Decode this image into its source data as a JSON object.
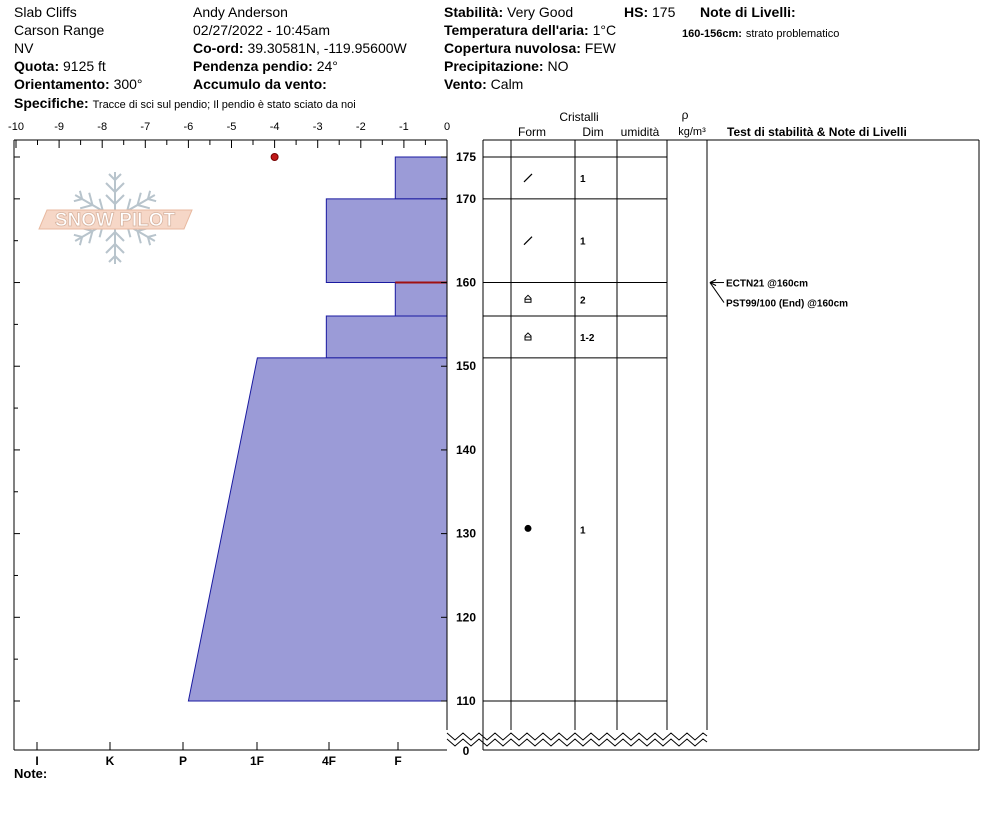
{
  "header": {
    "location": "Slab Cliffs",
    "range": "Carson Range",
    "state": "NV",
    "elevation_label": "Quota:",
    "elevation": "9125 ft",
    "aspect_label": "Orientamento:",
    "aspect": "300°",
    "specifics_label": "Specifiche:",
    "specifics": "Tracce di sci sul pendio;  Il pendio è stato sciato da noi",
    "observer": "Andy Anderson",
    "datetime": "02/27/2022 - 10:45am",
    "coord_label": "Co-ord:",
    "coord": "39.30581N, -119.95600W",
    "slope_label": "Pendenza pendio:",
    "slope": "24°",
    "wind_loading_label": "Accumulo da vento:",
    "stability_label": "Stabilità:",
    "stability": "Very Good",
    "hs_label": "HS:",
    "hs": "175",
    "air_temp_label": "Temperatura dell'aria:",
    "air_temp": "1°C",
    "cloud_label": "Copertura nuvolosa:",
    "cloud": "FEW",
    "precip_label": "Precipitazione:",
    "precip": "NO",
    "wind_label": "Vento:",
    "wind": "Calm",
    "layer_notes_label": "Note di Livelli:",
    "layer_note_range": "160-156cm:",
    "layer_note_text": "strato problematico"
  },
  "logo_text": "SNOW PILOT",
  "columns": {
    "crystals": "Cristalli",
    "form": "Form",
    "dim": "Dim",
    "moisture": "umidità",
    "rho": "ρ",
    "density_unit": "kg/m³",
    "tests": "Test di stabilità & Note di Livelli"
  },
  "footer": {
    "notes_label": "Note:"
  },
  "chart_data": {
    "type": "snow_profile",
    "temperature_axis": {
      "ticks": [
        "-10",
        "-9",
        "-8",
        "-7",
        "-6",
        "-5",
        "-4",
        "-3",
        "-2",
        "-1",
        "0"
      ],
      "range": [
        -10,
        0
      ]
    },
    "hardness_axis": {
      "ticks": [
        "I",
        "K",
        "P",
        "1F",
        "4F",
        "F"
      ]
    },
    "height_axis": {
      "ticks": [
        "175",
        "170",
        "160",
        "150",
        "140",
        "130",
        "120",
        "110",
        "0"
      ]
    },
    "temperature_points": [
      {
        "height": 175,
        "temp": -4
      }
    ],
    "hardness_layers": [
      {
        "top": 175,
        "bottom": 170,
        "hardness_top": 1.2,
        "hardness_bottom": 1.2
      },
      {
        "top": 170,
        "bottom": 160,
        "hardness_top": 2.8,
        "hardness_bottom": 2.8
      },
      {
        "top": 160,
        "bottom": 156,
        "hardness_top": 1.2,
        "hardness_bottom": 1.2
      },
      {
        "top": 156,
        "bottom": 151,
        "hardness_top": 2.8,
        "hardness_bottom": 2.8
      },
      {
        "top": 151,
        "bottom": 110,
        "hardness_top": 4.4,
        "hardness_bottom": 6.0
      }
    ],
    "problem_layer": 160,
    "crystal_layers": [
      {
        "top": 175,
        "bottom": 170,
        "form": "precipitation-particles",
        "size": "1"
      },
      {
        "top": 170,
        "bottom": 160,
        "form": "precipitation-particles",
        "size": "1"
      },
      {
        "top": 160,
        "bottom": 156,
        "form": "faceted-crystals",
        "size": "2"
      },
      {
        "top": 156,
        "bottom": 151,
        "form": "faceted-crystals",
        "size": "1-2"
      },
      {
        "top": 151,
        "bottom": 110,
        "form": "melt-forms",
        "size": "1"
      }
    ],
    "stability_tests": [
      {
        "label": "ECTN21 @160cm",
        "height": 160
      },
      {
        "label": "PST99/100 (End) @160cm",
        "height": 160
      }
    ]
  }
}
